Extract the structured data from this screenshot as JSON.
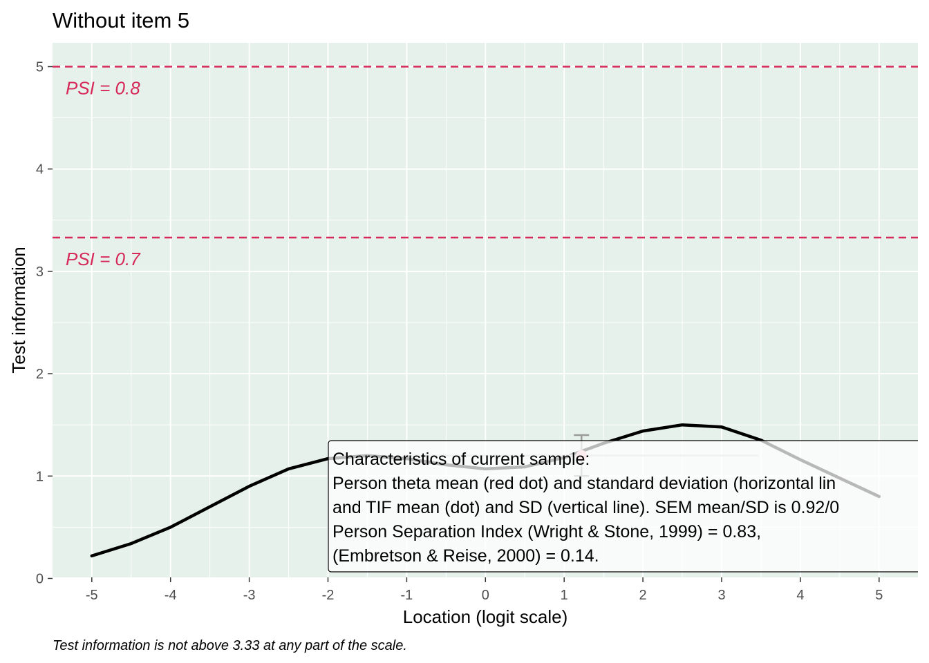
{
  "chart_data": {
    "type": "line",
    "title": "Without item 5",
    "xlabel": "Location (logit scale)",
    "ylabel": "Test information",
    "caption": "Test information is not above 3.33 at any part of the scale.",
    "xlim": [
      -5.5,
      5.5
    ],
    "ylim": [
      -0.05,
      5.25
    ],
    "x_ticks": [
      -5,
      -4,
      -3,
      -2,
      -1,
      0,
      1,
      2,
      3,
      4,
      5
    ],
    "x_tick_labels": [
      "-5",
      "-4",
      "-3",
      "-2",
      "-1",
      "0",
      "1",
      "2",
      "3",
      "4",
      "5"
    ],
    "y_ticks": [
      0,
      1,
      2,
      3,
      4,
      5
    ],
    "y_tick_labels": [
      "0",
      "1",
      "2",
      "3",
      "4",
      "5"
    ],
    "grid": true,
    "background_color": "#e5f1ea",
    "series": [
      {
        "color": "#000000",
        "x": [
          -5,
          -4.5,
          -4,
          -3.5,
          -3,
          -2.5,
          -2,
          -1.5,
          -1,
          -0.5,
          0,
          0.5,
          1,
          1.5,
          2,
          2.5,
          3,
          3.5,
          4,
          4.5,
          5
        ],
        "y": [
          0.22,
          0.34,
          0.5,
          0.7,
          0.9,
          1.07,
          1.17,
          1.2,
          1.17,
          1.11,
          1.07,
          1.09,
          1.18,
          1.32,
          1.44,
          1.5,
          1.48,
          1.35,
          1.16,
          0.98,
          0.8
        ]
      }
    ],
    "reference_lines": [
      {
        "y": 5.0,
        "label": "PSI = 0.8",
        "color": "#d6295a",
        "style": "dashed"
      },
      {
        "y": 3.33,
        "label": "PSI = 0.7",
        "color": "#d6295a",
        "style": "dashed"
      }
    ],
    "sample_summary": {
      "theta_mean": 1.22,
      "theta_sd": 2.25,
      "tif_mean": 1.2,
      "tif_sd": 0.2,
      "dot_color": "#f4b6c2",
      "whisker_color": "#9a9a9a"
    },
    "annotation_box": {
      "lines": [
        "Characteristics of current sample:",
        "Person theta mean (red dot) and standard deviation (horizontal lin",
        "and TIF mean (dot) and SD (vertical line). SEM mean/SD is 0.92/0",
        "Person Separation Index (Wright & Stone, 1999) = 0.83,",
        "(Embretson & Reise, 2000) = 0.14."
      ]
    }
  }
}
